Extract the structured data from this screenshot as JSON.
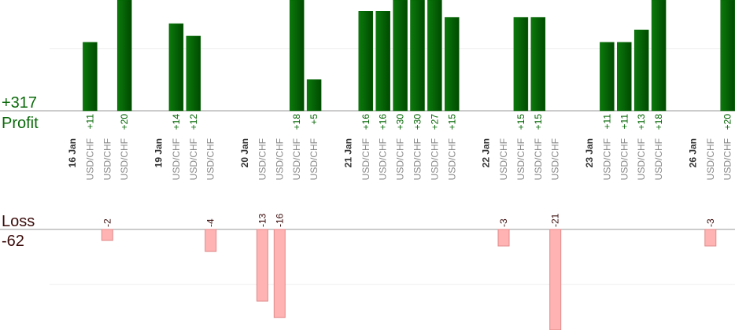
{
  "chart_data": {
    "type": "bar",
    "profit_label": "Profit",
    "loss_label": "Loss",
    "profit_total": {
      "value": 317,
      "label": "+317"
    },
    "loss_total": -62,
    "profit_color": "#006400",
    "loss_color": "#ffb3b3",
    "profit_ylim": [
      0,
      17.8
    ],
    "profit_yticks": [
      10
    ],
    "loss_ylim": [
      -16.4,
      0
    ],
    "loss_yticks": [
      -10
    ],
    "grid": true,
    "groups": [
      {
        "date": "16 Jan",
        "symbols": [
          "USD/CHF",
          "USD/CHF",
          "USD/CHF"
        ],
        "values": [
          11,
          -2,
          20
        ],
        "value_labels": [
          "+11",
          "-2",
          "+20"
        ]
      },
      {
        "date": "19 Jan",
        "symbols": [
          "USD/CHF",
          "USD/CHF",
          "USD/CHF"
        ],
        "values": [
          14,
          12,
          -4
        ],
        "value_labels": [
          "+14",
          "+12",
          "-4"
        ]
      },
      {
        "date": "20 Jan",
        "symbols": [
          "USD/CHF",
          "USD/CHF",
          "USD/CHF",
          "USD/CHF"
        ],
        "values": [
          -13,
          -16,
          18,
          5
        ],
        "value_labels": [
          "-13",
          "-16",
          "+18",
          "+5"
        ]
      },
      {
        "date": "21 Jan",
        "symbols": [
          "USD/CHF",
          "USD/CHF",
          "USD/CHF",
          "USD/CHF",
          "USD/CHF",
          "USD/CHF"
        ],
        "values": [
          16,
          16,
          30,
          30,
          27,
          15
        ],
        "value_labels": [
          "+16",
          "+16",
          "+30",
          "+30",
          "+27",
          "+15"
        ]
      },
      {
        "date": "22 Jan",
        "symbols": [
          "USD/CHF",
          "USD/CHF",
          "USD/CHF",
          "USD/CHF"
        ],
        "values": [
          -3,
          15,
          15,
          -21
        ],
        "value_labels": [
          "-3",
          "+15",
          "+15",
          "-21"
        ]
      },
      {
        "date": "23 Jan",
        "symbols": [
          "USD/CHF",
          "USD/CHF",
          "USD/CHF",
          "USD/CHF"
        ],
        "values": [
          11,
          11,
          13,
          18
        ],
        "value_labels": [
          "+11",
          "+11",
          "+13",
          "+18"
        ]
      },
      {
        "date": "26 Jan",
        "symbols": [
          "USD/CHF",
          "USD/CHF"
        ],
        "values": [
          -3,
          20
        ],
        "value_labels": [
          "-3",
          "+20"
        ]
      }
    ]
  }
}
